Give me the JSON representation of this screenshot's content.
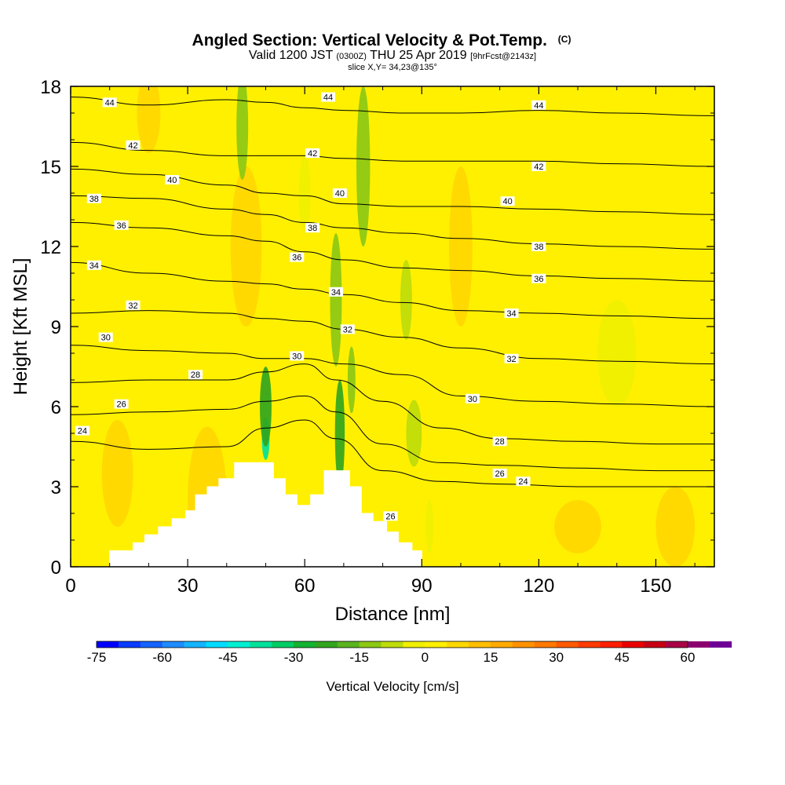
{
  "title": {
    "main": "Angled Section: Vertical Velocity & Pot.Temp.",
    "unit": "(C)",
    "valid_prefix": "Valid 1200 JST",
    "valid_utc": "(0300Z)",
    "valid_date": "THU 25 Apr 2019",
    "forecast": "[9hrFcst@2143z]",
    "slice": "slice X,Y= 34,23@135°"
  },
  "colors": {
    "frame": "#000000",
    "terrain": "#ffffff",
    "contour": "#000000",
    "label_bg": "#ffffff"
  },
  "chart_data": {
    "type": "heatmap",
    "xlabel": "Distance [nm]",
    "ylabel": "Height [Kft MSL]",
    "xlim": [
      0,
      165
    ],
    "ylim": [
      0,
      18
    ],
    "x_ticks": [
      "0",
      "30",
      "60",
      "90",
      "120",
      "150"
    ],
    "y_ticks": [
      "0",
      "3",
      "6",
      "9",
      "12",
      "15",
      "18"
    ],
    "x_tick_values": [
      0,
      30,
      60,
      90,
      120,
      150
    ],
    "y_tick_values": [
      0,
      3,
      6,
      9,
      12,
      15,
      18
    ],
    "terrain_profile": [
      [
        10,
        0.0
      ],
      [
        10,
        0.6
      ],
      [
        16,
        0.6
      ],
      [
        16,
        0.9
      ],
      [
        19,
        0.9
      ],
      [
        19,
        1.2
      ],
      [
        22.5,
        1.2
      ],
      [
        22.5,
        1.5
      ],
      [
        26,
        1.5
      ],
      [
        26,
        1.8
      ],
      [
        29.5,
        1.8
      ],
      [
        29.5,
        2.1
      ],
      [
        32,
        2.1
      ],
      [
        32,
        2.7
      ],
      [
        35,
        2.7
      ],
      [
        35,
        3.0
      ],
      [
        38,
        3.0
      ],
      [
        38,
        3.3
      ],
      [
        42,
        3.3
      ],
      [
        42,
        3.9
      ],
      [
        52,
        3.9
      ],
      [
        52,
        3.3
      ],
      [
        55,
        3.3
      ],
      [
        55,
        2.7
      ],
      [
        58,
        2.7
      ],
      [
        58,
        2.3
      ],
      [
        61.5,
        2.3
      ],
      [
        61.5,
        2.7
      ],
      [
        65,
        2.7
      ],
      [
        65,
        3.6
      ],
      [
        71.5,
        3.6
      ],
      [
        71.5,
        3.0
      ],
      [
        74.5,
        3.0
      ],
      [
        74.5,
        2.0
      ],
      [
        77.5,
        2.0
      ],
      [
        77.5,
        1.7
      ],
      [
        81,
        1.7
      ],
      [
        81,
        1.3
      ],
      [
        84,
        1.3
      ],
      [
        84,
        0.9
      ],
      [
        87.5,
        0.9
      ],
      [
        87.5,
        0.6
      ],
      [
        90,
        0.6
      ],
      [
        90,
        0.0
      ]
    ],
    "isentropes": [
      {
        "value": 24,
        "label": "24",
        "profile": [
          [
            0,
            4.7
          ],
          [
            20,
            4.4
          ],
          [
            40,
            4.5
          ],
          [
            50,
            5.2
          ],
          [
            60,
            5.5
          ],
          [
            68,
            4.8
          ],
          [
            80,
            3.6
          ],
          [
            95,
            3.2
          ],
          [
            110,
            3.1
          ],
          [
            130,
            3.0
          ],
          [
            150,
            3.0
          ],
          [
            165,
            3.0
          ]
        ]
      },
      {
        "value": 26,
        "label": "26",
        "profile": [
          [
            0,
            5.7
          ],
          [
            20,
            5.8
          ],
          [
            40,
            5.9
          ],
          [
            50,
            6.2
          ],
          [
            60,
            6.4
          ],
          [
            68,
            5.8
          ],
          [
            80,
            4.6
          ],
          [
            95,
            3.9
          ],
          [
            110,
            3.8
          ],
          [
            130,
            3.7
          ],
          [
            150,
            3.6
          ],
          [
            165,
            3.6
          ]
        ]
      },
      {
        "value": 28,
        "label": "28",
        "profile": [
          [
            0,
            6.9
          ],
          [
            20,
            7.0
          ],
          [
            40,
            7.0
          ],
          [
            50,
            7.3
          ],
          [
            60,
            7.6
          ],
          [
            68,
            7.0
          ],
          [
            80,
            6.2
          ],
          [
            95,
            5.2
          ],
          [
            110,
            4.8
          ],
          [
            130,
            4.7
          ],
          [
            150,
            4.6
          ],
          [
            165,
            4.6
          ]
        ]
      },
      {
        "value": 30,
        "label": "30",
        "profile": [
          [
            0,
            8.3
          ],
          [
            20,
            8.1
          ],
          [
            40,
            8.0
          ],
          [
            50,
            7.8
          ],
          [
            60,
            7.8
          ],
          [
            70,
            7.6
          ],
          [
            85,
            7.2
          ],
          [
            100,
            6.4
          ],
          [
            120,
            6.2
          ],
          [
            140,
            6.1
          ],
          [
            165,
            6.0
          ]
        ]
      },
      {
        "value": 32,
        "label": "32",
        "profile": [
          [
            0,
            9.5
          ],
          [
            20,
            9.6
          ],
          [
            40,
            9.5
          ],
          [
            50,
            9.3
          ],
          [
            60,
            9.2
          ],
          [
            70,
            8.9
          ],
          [
            85,
            8.6
          ],
          [
            100,
            8.2
          ],
          [
            120,
            7.8
          ],
          [
            140,
            7.7
          ],
          [
            165,
            7.6
          ]
        ]
      },
      {
        "value": 34,
        "label": "34",
        "profile": [
          [
            0,
            11.4
          ],
          [
            20,
            11.0
          ],
          [
            40,
            10.7
          ],
          [
            50,
            10.6
          ],
          [
            60,
            10.4
          ],
          [
            70,
            10.2
          ],
          [
            85,
            9.9
          ],
          [
            100,
            9.6
          ],
          [
            120,
            9.5
          ],
          [
            140,
            9.4
          ],
          [
            165,
            9.3
          ]
        ]
      },
      {
        "value": 36,
        "label": "36",
        "profile": [
          [
            0,
            12.9
          ],
          [
            20,
            12.7
          ],
          [
            40,
            12.4
          ],
          [
            50,
            12.2
          ],
          [
            60,
            11.8
          ],
          [
            70,
            11.5
          ],
          [
            85,
            11.2
          ],
          [
            100,
            11.1
          ],
          [
            120,
            10.9
          ],
          [
            140,
            10.8
          ],
          [
            165,
            10.7
          ]
        ]
      },
      {
        "value": 38,
        "label": "38",
        "profile": [
          [
            0,
            13.9
          ],
          [
            20,
            13.8
          ],
          [
            40,
            13.4
          ],
          [
            50,
            13.2
          ],
          [
            60,
            12.9
          ],
          [
            70,
            12.7
          ],
          [
            85,
            12.5
          ],
          [
            100,
            12.3
          ],
          [
            120,
            12.1
          ],
          [
            140,
            12.0
          ],
          [
            165,
            11.9
          ]
        ]
      },
      {
        "value": 40,
        "label": "40",
        "profile": [
          [
            0,
            14.9
          ],
          [
            20,
            14.7
          ],
          [
            40,
            14.3
          ],
          [
            50,
            14.0
          ],
          [
            60,
            13.9
          ],
          [
            70,
            13.6
          ],
          [
            85,
            13.5
          ],
          [
            100,
            13.5
          ],
          [
            120,
            13.4
          ],
          [
            140,
            13.3
          ],
          [
            165,
            13.2
          ]
        ]
      },
      {
        "value": 42,
        "label": "42",
        "profile": [
          [
            0,
            15.9
          ],
          [
            20,
            15.6
          ],
          [
            40,
            15.4
          ],
          [
            50,
            15.4
          ],
          [
            60,
            15.4
          ],
          [
            70,
            15.3
          ],
          [
            85,
            15.2
          ],
          [
            100,
            15.2
          ],
          [
            120,
            15.2
          ],
          [
            140,
            15.1
          ],
          [
            165,
            15.0
          ]
        ]
      },
      {
        "value": 44,
        "label": "44",
        "profile": [
          [
            0,
            17.6
          ],
          [
            20,
            17.3
          ],
          [
            40,
            17.5
          ],
          [
            50,
            17.4
          ],
          [
            60,
            17.2
          ],
          [
            70,
            17.1
          ],
          [
            85,
            17.0
          ],
          [
            100,
            17.0
          ],
          [
            120,
            17.1
          ],
          [
            140,
            17.0
          ],
          [
            165,
            16.9
          ]
        ]
      }
    ],
    "contour_labels": [
      {
        "text": "44",
        "x": 10,
        "y": 17.4
      },
      {
        "text": "44",
        "x": 66,
        "y": 17.6
      },
      {
        "text": "44",
        "x": 120,
        "y": 17.3
      },
      {
        "text": "42",
        "x": 16,
        "y": 15.8
      },
      {
        "text": "42",
        "x": 62,
        "y": 15.5
      },
      {
        "text": "42",
        "x": 120,
        "y": 15.0
      },
      {
        "text": "40",
        "x": 26,
        "y": 14.5
      },
      {
        "text": "40",
        "x": 69,
        "y": 14.0
      },
      {
        "text": "40",
        "x": 112,
        "y": 13.7
      },
      {
        "text": "38",
        "x": 6,
        "y": 13.8
      },
      {
        "text": "38",
        "x": 62,
        "y": 12.7
      },
      {
        "text": "38",
        "x": 120,
        "y": 12.0
      },
      {
        "text": "36",
        "x": 13,
        "y": 12.8
      },
      {
        "text": "36",
        "x": 58,
        "y": 11.6
      },
      {
        "text": "36",
        "x": 120,
        "y": 10.8
      },
      {
        "text": "34",
        "x": 6,
        "y": 11.3
      },
      {
        "text": "34",
        "x": 68,
        "y": 10.3
      },
      {
        "text": "34",
        "x": 113,
        "y": 9.5
      },
      {
        "text": "32",
        "x": 16,
        "y": 9.8
      },
      {
        "text": "32",
        "x": 71,
        "y": 8.9
      },
      {
        "text": "32",
        "x": 113,
        "y": 7.8
      },
      {
        "text": "30",
        "x": 9,
        "y": 8.6
      },
      {
        "text": "30",
        "x": 58,
        "y": 7.9
      },
      {
        "text": "30",
        "x": 103,
        "y": 6.3
      },
      {
        "text": "28",
        "x": 32,
        "y": 7.2
      },
      {
        "text": "28",
        "x": 110,
        "y": 4.7
      },
      {
        "text": "26",
        "x": 13,
        "y": 6.1
      },
      {
        "text": "26",
        "x": 110,
        "y": 3.5
      },
      {
        "text": "26",
        "x": 82,
        "y": 1.9
      },
      {
        "text": "24",
        "x": 3,
        "y": 5.1
      },
      {
        "text": "24",
        "x": 116,
        "y": 3.2
      }
    ],
    "vertical_velocity_field": {
      "background": 3,
      "features": [
        {
          "kind": "updraft",
          "x": 35,
          "y": 2.5,
          "w": 10,
          "h": 5.5,
          "value": 8
        },
        {
          "kind": "updraft",
          "x": 12,
          "y": 3.5,
          "w": 8,
          "h": 4,
          "value": 7
        },
        {
          "kind": "updraft",
          "x": 20,
          "y": 17,
          "w": 6,
          "h": 3,
          "value": 6
        },
        {
          "kind": "updraft",
          "x": 45,
          "y": 12,
          "w": 8,
          "h": 6,
          "value": 6
        },
        {
          "kind": "updraft",
          "x": 155,
          "y": 1.5,
          "w": 10,
          "h": 3,
          "value": 6
        },
        {
          "kind": "updraft",
          "x": 130,
          "y": 1.5,
          "w": 12,
          "h": 2,
          "value": 5
        },
        {
          "kind": "updraft",
          "x": 100,
          "y": 12,
          "w": 6,
          "h": 6,
          "value": 5
        },
        {
          "kind": "downdraft_core",
          "x": 50,
          "y": 4.8,
          "w": 2,
          "h": 1.6,
          "value": -40
        },
        {
          "kind": "downdraft",
          "x": 50,
          "y": 6,
          "w": 3,
          "h": 3,
          "value": -24
        },
        {
          "kind": "downdraft",
          "x": 69,
          "y": 5,
          "w": 2.5,
          "h": 4,
          "value": -22
        },
        {
          "kind": "downdraft",
          "x": 68,
          "y": 10,
          "w": 3,
          "h": 5,
          "value": -14
        },
        {
          "kind": "downdraft",
          "x": 75,
          "y": 15,
          "w": 3.5,
          "h": 6,
          "value": -13
        },
        {
          "kind": "downdraft",
          "x": 72,
          "y": 7,
          "w": 2,
          "h": 2.5,
          "value": -12
        },
        {
          "kind": "downdraft",
          "x": 44,
          "y": 16.5,
          "w": 3,
          "h": 4,
          "value": -12
        },
        {
          "kind": "downdraft",
          "x": 86,
          "y": 10,
          "w": 3,
          "h": 3,
          "value": -10
        },
        {
          "kind": "downdraft",
          "x": 88,
          "y": 5,
          "w": 4,
          "h": 2.5,
          "value": -9
        },
        {
          "kind": "downdraft",
          "x": 92,
          "y": 1.5,
          "w": 2,
          "h": 2,
          "value": -5
        },
        {
          "kind": "downdraft",
          "x": 60,
          "y": 14,
          "w": 3,
          "h": 3,
          "value": -4
        },
        {
          "kind": "downdraft",
          "x": 140,
          "y": 8,
          "w": 10,
          "h": 4,
          "value": -2
        }
      ]
    }
  },
  "colorbar": {
    "label": "Vertical Velocity [cm/s]",
    "min": -75,
    "max": 60,
    "step": 5,
    "tick_values": [
      -75,
      -60,
      -45,
      -30,
      -15,
      0,
      15,
      30,
      45,
      60
    ],
    "tick_labels": [
      "-75",
      "-60",
      "-45",
      "-30",
      "-15",
      "0",
      "15",
      "30",
      "45",
      "60"
    ],
    "palette": [
      "#0000ff",
      "#0a3cff",
      "#1464ff",
      "#1e8cff",
      "#14b4ff",
      "#00dcff",
      "#00f0d2",
      "#00e19b",
      "#00cd64",
      "#14b432",
      "#32a51e",
      "#5ab41e",
      "#8cc814",
      "#bedc0a",
      "#f0f000",
      "#fff000",
      "#ffd700",
      "#ffbe00",
      "#ffaa00",
      "#ff9100",
      "#ff7800",
      "#ff5a00",
      "#ff3c00",
      "#ff1e00",
      "#eb0000",
      "#c80014",
      "#aa0046",
      "#8c006e",
      "#6e0096"
    ]
  }
}
